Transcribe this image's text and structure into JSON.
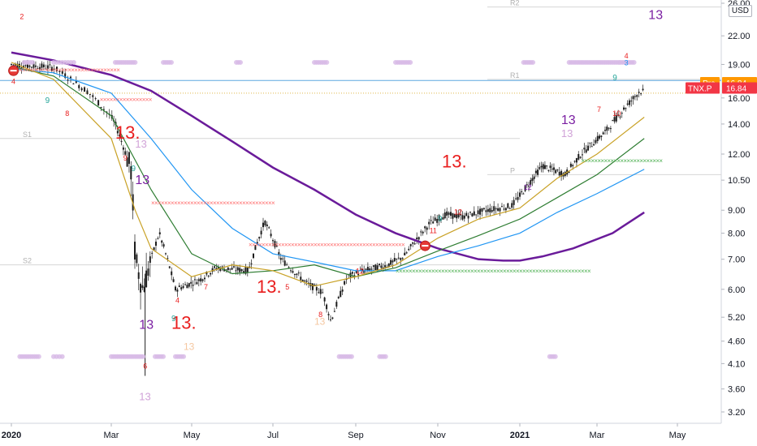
{
  "chart_data": {
    "type": "candlestick",
    "symbol": "TNX.P",
    "unit": "USD",
    "y_scale": "log",
    "y_ticks": [
      3.2,
      3.6,
      4.1,
      4.6,
      5.2,
      6.0,
      7.0,
      8.0,
      9.0,
      10.5,
      12.0,
      14.0,
      16.0,
      19.0,
      22.0,
      26.0
    ],
    "x_ticks": [
      "2020",
      "Mar",
      "May",
      "Jul",
      "Sep",
      "Nov",
      "2021",
      "Mar",
      "May"
    ],
    "bold_x_ticks": [
      "2020",
      "2021"
    ],
    "price_labels": [
      {
        "label": "Pre",
        "value": "16.84",
        "color": "#ff9800"
      },
      {
        "label": "TNX.P",
        "value": "16.84",
        "color": "#f23645"
      }
    ],
    "pivot_labels": [
      "R2",
      "R1",
      "P",
      "S1",
      "S2"
    ],
    "td_markers": [
      {
        "text": "13",
        "color": "#7b1fa2"
      },
      {
        "text": "13",
        "color": "#7b1fa2"
      },
      {
        "text": "13",
        "color": "#7b1fa2"
      },
      {
        "text": "13",
        "color": "#7b1fa2"
      },
      {
        "text": "13",
        "color": "#d1a3d8"
      },
      {
        "text": "13",
        "color": "#d1a3d8"
      },
      {
        "text": "13",
        "color": "#d1a3d8"
      },
      {
        "text": "13",
        "color": "#f5c7a0"
      },
      {
        "text": "13",
        "color": "#f5c7a0"
      },
      {
        "text": "13.",
        "color": "#e91e1e"
      },
      {
        "text": "13.",
        "color": "#e91e1e"
      },
      {
        "text": "13.",
        "color": "#e91e1e"
      },
      {
        "text": "13.",
        "color": "#e91e1e"
      },
      {
        "text": "9",
        "color": "#26a69a"
      },
      {
        "text": "9",
        "color": "#26a69a"
      },
      {
        "text": "9",
        "color": "#26a69a"
      },
      {
        "text": "9",
        "color": "#26a69a"
      },
      {
        "text": "9",
        "color": "#26a69a"
      }
    ],
    "colors": {
      "up": "#26a69a",
      "down": "#ef5350",
      "ma_purple": "#6a1b9a",
      "ma_blue": "#2196f3",
      "ma_green": "#2e7d32",
      "ma_gold": "#c9a227",
      "line_blue": "#5fa8e0",
      "dots_red": "#ff6b6b",
      "dots_green": "#4caf50",
      "dots_purple": "#d7b9e6"
    }
  }
}
